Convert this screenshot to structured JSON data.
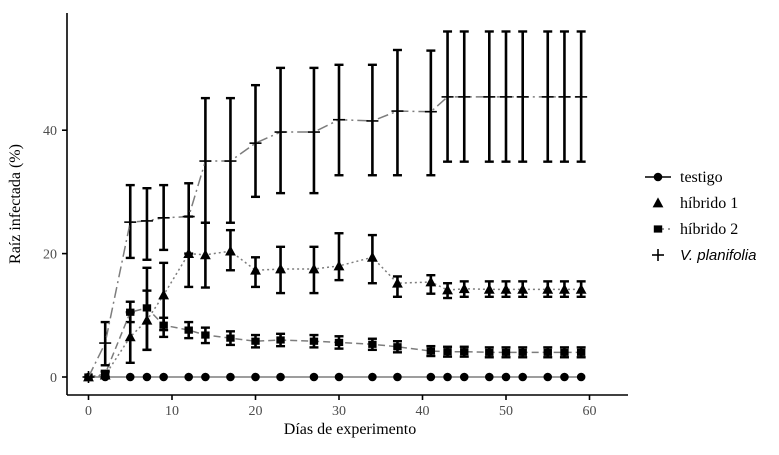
{
  "figure": {
    "background": "#ffffff",
    "kind": "scientific line chart with error bars"
  },
  "chart_data": {
    "type": "line",
    "title": "",
    "xlabel": "Días de experimento",
    "ylabel": "Raíz infectada (%)",
    "xlim": [
      0,
      60
    ],
    "ylim": [
      0,
      57
    ],
    "x_ticks": [
      0,
      10,
      20,
      30,
      40,
      50,
      60
    ],
    "y_ticks": [
      0,
      20,
      40
    ],
    "grid": false,
    "legend_position": "right",
    "days": [
      0,
      2,
      5,
      7,
      9,
      12,
      14,
      17,
      20,
      23,
      27,
      30,
      34,
      37,
      41,
      43,
      45,
      48,
      50,
      52,
      55,
      57,
      59
    ],
    "series": [
      {
        "name": "testigo",
        "marker": "circle",
        "linetype": "solid",
        "italic": false,
        "values": [
          0,
          0,
          0,
          0,
          0,
          0,
          0,
          0,
          0,
          0,
          0,
          0,
          0,
          0,
          0,
          0,
          0,
          0,
          0,
          0,
          0,
          0,
          0
        ],
        "err_lo": [
          0,
          0,
          0,
          0,
          0,
          0,
          0,
          0,
          0,
          0,
          0,
          0,
          0,
          0,
          0,
          0,
          0,
          0,
          0,
          0,
          0,
          0,
          0
        ],
        "err_hi": [
          0,
          0,
          0,
          0,
          0,
          0,
          0,
          0,
          0,
          0,
          0,
          0,
          0,
          0,
          0,
          0,
          0,
          0,
          0,
          0,
          0,
          0,
          0
        ]
      },
      {
        "name": "híbrido 1",
        "marker": "triangle",
        "linetype": "dotted",
        "italic": false,
        "values": [
          0,
          0.3,
          6.5,
          9.2,
          13.3,
          20,
          19.8,
          20.4,
          17.3,
          17.5,
          17.5,
          18,
          19.4,
          15.2,
          15.4,
          14.1,
          14.3,
          14.2,
          14.2,
          14.2,
          14.2,
          14.2,
          14.2
        ],
        "err_lo": [
          0,
          0,
          2.3,
          4.4,
          7.6,
          14.6,
          14.5,
          17.3,
          14.6,
          13.6,
          13.6,
          15.7,
          15.2,
          13,
          13.5,
          12.8,
          13,
          13,
          13,
          13,
          13,
          13,
          13
        ],
        "err_hi": [
          0,
          0.8,
          10.5,
          14,
          18.5,
          26,
          25,
          23.8,
          19.4,
          21.1,
          21.1,
          23.3,
          23,
          16.3,
          16.5,
          15.2,
          15.5,
          15.5,
          15.5,
          15.5,
          15.5,
          15.5,
          15.5
        ]
      },
      {
        "name": "híbrido 2",
        "marker": "square",
        "linetype": "dashed",
        "italic": false,
        "values": [
          0,
          0.5,
          10.5,
          11.2,
          8.4,
          7.6,
          6.8,
          6.3,
          5.8,
          6,
          5.8,
          5.6,
          5.3,
          4.9,
          4.2,
          4.1,
          4.1,
          4,
          4,
          4,
          4,
          4,
          4
        ],
        "err_lo": [
          0,
          0,
          8.9,
          4.4,
          6.5,
          6.3,
          5.5,
          5.2,
          4.8,
          5,
          4.8,
          4.6,
          4.4,
          4,
          3.4,
          3.3,
          3.3,
          3.2,
          3.2,
          3.2,
          3.2,
          3.2,
          3.2
        ],
        "err_hi": [
          0,
          1,
          12.2,
          17.7,
          9.6,
          8.9,
          8,
          7.4,
          6.8,
          7,
          6.8,
          6.6,
          6.2,
          5.8,
          5,
          4.9,
          4.9,
          4.8,
          4.8,
          4.8,
          4.8,
          4.8,
          4.8
        ]
      },
      {
        "name": "V. planifolia",
        "marker": "plus",
        "linetype": "longdash",
        "italic": true,
        "values": [
          0,
          5.5,
          25.1,
          25.3,
          25.8,
          26,
          35,
          35,
          37.9,
          39.7,
          39.7,
          41.7,
          41.5,
          43.1,
          43,
          45.4,
          45.4,
          45.4,
          45.4,
          45.4,
          45.4,
          45.4,
          45.4
        ],
        "err_lo": [
          0,
          1.9,
          19.3,
          19,
          20.6,
          20,
          25,
          25,
          29.2,
          29.8,
          29.8,
          32.7,
          32.7,
          32.7,
          32.7,
          34.9,
          34.9,
          34.9,
          34.9,
          34.9,
          34.9,
          34.9,
          34.9
        ],
        "err_hi": [
          0,
          8.9,
          31.1,
          30.6,
          31.1,
          31.4,
          45.2,
          45.2,
          47.3,
          50.1,
          50.1,
          50.6,
          50.6,
          53,
          52.9,
          56,
          56,
          56,
          56,
          56,
          56,
          56,
          56
        ]
      }
    ],
    "legend_entries": [
      "testigo",
      "híbrido 1",
      "híbrido 2",
      "V. planifolia"
    ],
    "colors": {
      "marker": "#000000",
      "error_bar": "#000000",
      "series_line": "#7d7d7d",
      "axis_line": "#000000",
      "tick_label": "#4d4d4d",
      "axis_title": "#000000",
      "background": "#ffffff"
    }
  }
}
